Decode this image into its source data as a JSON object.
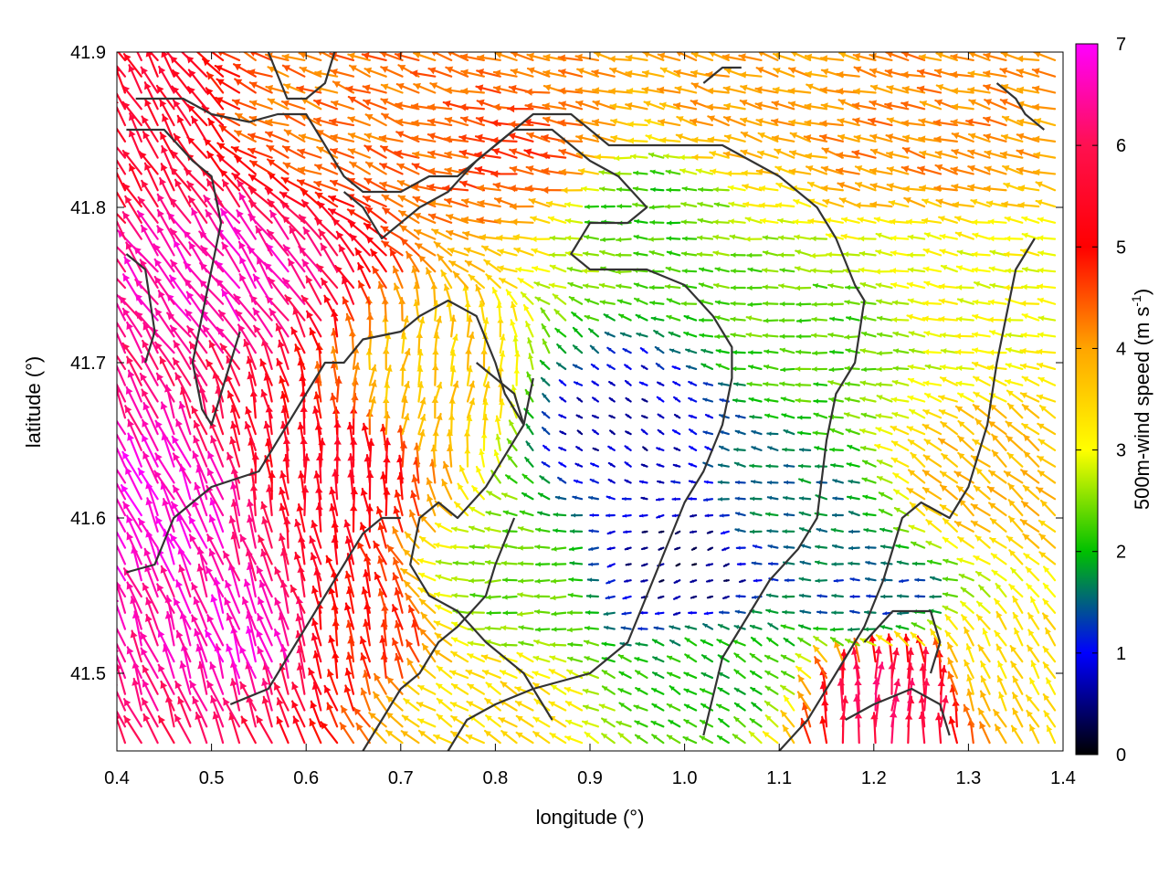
{
  "chart_data": {
    "type": "vector-field",
    "xlabel": "longitude (°)",
    "ylabel": "latitude (°)",
    "colorbar_label_main": "500m-wind speed (m s",
    "colorbar_label_sup": "-1",
    "colorbar_label_end": ")",
    "xlim": [
      0.4,
      1.4
    ],
    "ylim": [
      41.45,
      41.9
    ],
    "xticks": [
      0.4,
      0.5,
      0.6,
      0.7,
      0.8,
      0.9,
      1.0,
      1.1,
      1.2,
      1.3,
      1.4
    ],
    "xtick_labels": [
      "0.4",
      "0.5",
      "0.6",
      "0.7",
      "0.8",
      "0.9",
      "1.0",
      "1.1",
      "1.2",
      "1.3",
      "1.4"
    ],
    "yticks": [
      41.5,
      41.6,
      41.7,
      41.8,
      41.9
    ],
    "ytick_labels": [
      "41.5",
      "41.6",
      "41.7",
      "41.8",
      "41.9"
    ],
    "colorbar_range": [
      0,
      7
    ],
    "colorbar_ticks": [
      0,
      1,
      2,
      3,
      4,
      5,
      6,
      7
    ],
    "colorbar_tick_labels": [
      "0",
      "1",
      "2",
      "3",
      "4",
      "5",
      "6",
      "7"
    ],
    "colormap": [
      "#000000",
      "#0000ff",
      "#00c000",
      "#ffff00",
      "#ffa500",
      "#ff0000",
      "#ff00ff"
    ],
    "contour_color": "#333333",
    "wind_regions": [
      {
        "lon": 0.45,
        "lat": 41.6,
        "speed": 6.8,
        "dir_deg": 115
      },
      {
        "lon": 0.52,
        "lat": 41.75,
        "speed": 6.6,
        "dir_deg": 125
      },
      {
        "lon": 0.55,
        "lat": 41.52,
        "speed": 6.7,
        "dir_deg": 110
      },
      {
        "lon": 0.42,
        "lat": 41.85,
        "speed": 5.6,
        "dir_deg": 120
      },
      {
        "lon": 0.62,
        "lat": 41.62,
        "speed": 5.4,
        "dir_deg": 95
      },
      {
        "lon": 0.66,
        "lat": 41.52,
        "speed": 4.8,
        "dir_deg": 100
      },
      {
        "lon": 0.62,
        "lat": 41.86,
        "speed": 4.3,
        "dir_deg": 160
      },
      {
        "lon": 0.85,
        "lat": 41.83,
        "speed": 4.6,
        "dir_deg": 170
      },
      {
        "lon": 1.25,
        "lat": 41.85,
        "speed": 4.2,
        "dir_deg": 165
      },
      {
        "lon": 0.74,
        "lat": 41.68,
        "speed": 3.6,
        "dir_deg": 80
      },
      {
        "lon": 0.82,
        "lat": 41.55,
        "speed": 2.4,
        "dir_deg": 180
      },
      {
        "lon": 0.95,
        "lat": 41.8,
        "speed": 2.2,
        "dir_deg": 175
      },
      {
        "lon": 0.93,
        "lat": 41.66,
        "speed": 0.7,
        "dir_deg": 150
      },
      {
        "lon": 1.0,
        "lat": 41.57,
        "speed": 0.4,
        "dir_deg": 200
      },
      {
        "lon": 1.12,
        "lat": 41.6,
        "speed": 1.6,
        "dir_deg": 170
      },
      {
        "lon": 1.2,
        "lat": 41.55,
        "speed": 1.4,
        "dir_deg": 180
      },
      {
        "lon": 1.15,
        "lat": 41.72,
        "speed": 2.3,
        "dir_deg": 175
      },
      {
        "lon": 1.05,
        "lat": 41.5,
        "speed": 2.0,
        "dir_deg": 150
      },
      {
        "lon": 1.32,
        "lat": 41.62,
        "speed": 3.8,
        "dir_deg": 140
      },
      {
        "lon": 1.35,
        "lat": 41.5,
        "speed": 3.3,
        "dir_deg": 120
      },
      {
        "lon": 1.22,
        "lat": 41.48,
        "speed": 6.0,
        "dir_deg": 85
      },
      {
        "lon": 1.3,
        "lat": 41.74,
        "speed": 3.0,
        "dir_deg": 170
      },
      {
        "lon": 0.78,
        "lat": 41.48,
        "speed": 3.4,
        "dir_deg": 150
      },
      {
        "lon": 1.07,
        "lat": 41.87,
        "speed": 4.0,
        "dir_deg": 165
      }
    ],
    "contours": [
      [
        [
          0.41,
          41.565
        ],
        [
          0.44,
          41.57
        ],
        [
          0.46,
          41.6
        ],
        [
          0.5,
          41.62
        ],
        [
          0.55,
          41.63
        ],
        [
          0.58,
          41.66
        ],
        [
          0.6,
          41.68
        ],
        [
          0.62,
          41.7
        ],
        [
          0.64,
          41.7
        ],
        [
          0.66,
          41.715
        ],
        [
          0.7,
          41.72
        ],
        [
          0.72,
          41.73
        ],
        [
          0.75,
          41.74
        ],
        [
          0.78,
          41.73
        ],
        [
          0.8,
          41.7
        ],
        [
          0.81,
          41.68
        ],
        [
          0.83,
          41.66
        ],
        [
          0.84,
          41.69
        ]
      ],
      [
        [
          0.41,
          41.85
        ],
        [
          0.45,
          41.85
        ],
        [
          0.48,
          41.83
        ],
        [
          0.5,
          41.82
        ],
        [
          0.51,
          41.79
        ],
        [
          0.5,
          41.76
        ],
        [
          0.49,
          41.73
        ],
        [
          0.48,
          41.7
        ],
        [
          0.49,
          41.67
        ],
        [
          0.5,
          41.66
        ],
        [
          0.52,
          41.7
        ],
        [
          0.53,
          41.72
        ]
      ],
      [
        [
          0.42,
          41.87
        ],
        [
          0.47,
          41.87
        ],
        [
          0.5,
          41.86
        ],
        [
          0.54,
          41.855
        ],
        [
          0.57,
          41.86
        ],
        [
          0.6,
          41.86
        ],
        [
          0.62,
          41.84
        ],
        [
          0.64,
          41.82
        ],
        [
          0.66,
          41.81
        ],
        [
          0.7,
          41.81
        ],
        [
          0.73,
          41.82
        ],
        [
          0.76,
          41.82
        ],
        [
          0.8,
          41.84
        ],
        [
          0.84,
          41.86
        ],
        [
          0.88,
          41.86
        ],
        [
          0.92,
          41.84
        ],
        [
          0.96,
          41.84
        ],
        [
          1.0,
          41.84
        ],
        [
          1.04,
          41.84
        ],
        [
          1.07,
          41.83
        ],
        [
          1.1,
          41.82
        ],
        [
          1.14,
          41.8
        ],
        [
          1.16,
          41.78
        ],
        [
          1.18,
          41.75
        ],
        [
          1.19,
          41.74
        ],
        [
          1.18,
          41.7
        ],
        [
          1.16,
          41.68
        ],
        [
          1.15,
          41.65
        ],
        [
          1.14,
          41.6
        ],
        [
          1.12,
          41.58
        ],
        [
          1.09,
          41.56
        ],
        [
          1.06,
          41.53
        ],
        [
          1.04,
          41.51
        ],
        [
          1.02,
          41.46
        ]
      ],
      [
        [
          0.64,
          41.81
        ],
        [
          0.66,
          41.8
        ],
        [
          0.68,
          41.78
        ],
        [
          0.72,
          41.8
        ],
        [
          0.75,
          41.81
        ],
        [
          0.78,
          41.83
        ],
        [
          0.82,
          41.85
        ],
        [
          0.86,
          41.85
        ],
        [
          0.88,
          41.84
        ],
        [
          0.9,
          41.83
        ],
        [
          0.93,
          41.82
        ],
        [
          0.96,
          41.8
        ],
        [
          0.94,
          41.79
        ],
        [
          0.9,
          41.79
        ],
        [
          0.88,
          41.77
        ],
        [
          0.9,
          41.76
        ],
        [
          0.92,
          41.76
        ],
        [
          0.96,
          41.76
        ],
        [
          1.0,
          41.75
        ],
        [
          1.03,
          41.73
        ],
        [
          1.05,
          41.71
        ],
        [
          1.05,
          41.69
        ],
        [
          1.04,
          41.66
        ],
        [
          1.02,
          41.63
        ],
        [
          1.0,
          41.61
        ],
        [
          0.98,
          41.58
        ],
        [
          0.96,
          41.55
        ],
        [
          0.94,
          41.52
        ],
        [
          0.9,
          41.5
        ],
        [
          0.84,
          41.49
        ],
        [
          0.8,
          41.48
        ],
        [
          0.77,
          41.47
        ],
        [
          0.75,
          41.45
        ]
      ],
      [
        [
          0.78,
          41.7
        ],
        [
          0.82,
          41.68
        ],
        [
          0.83,
          41.66
        ],
        [
          0.8,
          41.63
        ],
        [
          0.79,
          41.62
        ],
        [
          0.76,
          41.6
        ],
        [
          0.74,
          41.61
        ],
        [
          0.72,
          41.6
        ],
        [
          0.71,
          41.57
        ],
        [
          0.73,
          41.55
        ],
        [
          0.76,
          41.54
        ],
        [
          0.79,
          41.52
        ],
        [
          0.83,
          41.5
        ],
        [
          0.85,
          41.48
        ],
        [
          0.86,
          41.47
        ]
      ],
      [
        [
          0.41,
          41.77
        ],
        [
          0.43,
          41.76
        ],
        [
          0.44,
          41.72
        ],
        [
          0.43,
          41.7
        ]
      ],
      [
        [
          0.52,
          41.48
        ],
        [
          0.56,
          41.49
        ],
        [
          0.58,
          41.51
        ],
        [
          0.6,
          41.53
        ],
        [
          0.62,
          41.55
        ],
        [
          0.64,
          41.57
        ],
        [
          0.66,
          41.59
        ],
        [
          0.68,
          41.6
        ],
        [
          0.7,
          41.6
        ]
      ],
      [
        [
          0.66,
          41.45
        ],
        [
          0.68,
          41.47
        ],
        [
          0.7,
          41.49
        ],
        [
          0.72,
          41.5
        ],
        [
          0.74,
          41.52
        ],
        [
          0.76,
          41.53
        ],
        [
          0.79,
          41.55
        ],
        [
          0.8,
          41.57
        ],
        [
          0.82,
          41.6
        ]
      ],
      [
        [
          0.56,
          41.9
        ],
        [
          0.58,
          41.87
        ],
        [
          0.6,
          41.87
        ],
        [
          0.62,
          41.88
        ],
        [
          0.63,
          41.9
        ]
      ],
      [
        [
          1.1,
          41.45
        ],
        [
          1.13,
          41.47
        ],
        [
          1.16,
          41.5
        ],
        [
          1.19,
          41.53
        ],
        [
          1.21,
          41.56
        ],
        [
          1.23,
          41.6
        ],
        [
          1.25,
          41.61
        ],
        [
          1.28,
          41.6
        ],
        [
          1.3,
          41.62
        ],
        [
          1.32,
          41.66
        ],
        [
          1.33,
          41.7
        ],
        [
          1.34,
          41.73
        ],
        [
          1.35,
          41.76
        ],
        [
          1.37,
          41.78
        ]
      ],
      [
        [
          1.19,
          41.52
        ],
        [
          1.22,
          41.54
        ],
        [
          1.26,
          41.54
        ],
        [
          1.27,
          41.52
        ],
        [
          1.26,
          41.5
        ]
      ],
      [
        [
          1.17,
          41.47
        ],
        [
          1.2,
          41.48
        ],
        [
          1.24,
          41.49
        ],
        [
          1.27,
          41.48
        ],
        [
          1.28,
          41.46
        ]
      ],
      [
        [
          1.33,
          41.88
        ],
        [
          1.35,
          41.87
        ],
        [
          1.36,
          41.86
        ],
        [
          1.38,
          41.85
        ]
      ],
      [
        [
          1.02,
          41.88
        ],
        [
          1.04,
          41.89
        ],
        [
          1.06,
          41.89
        ]
      ]
    ]
  }
}
